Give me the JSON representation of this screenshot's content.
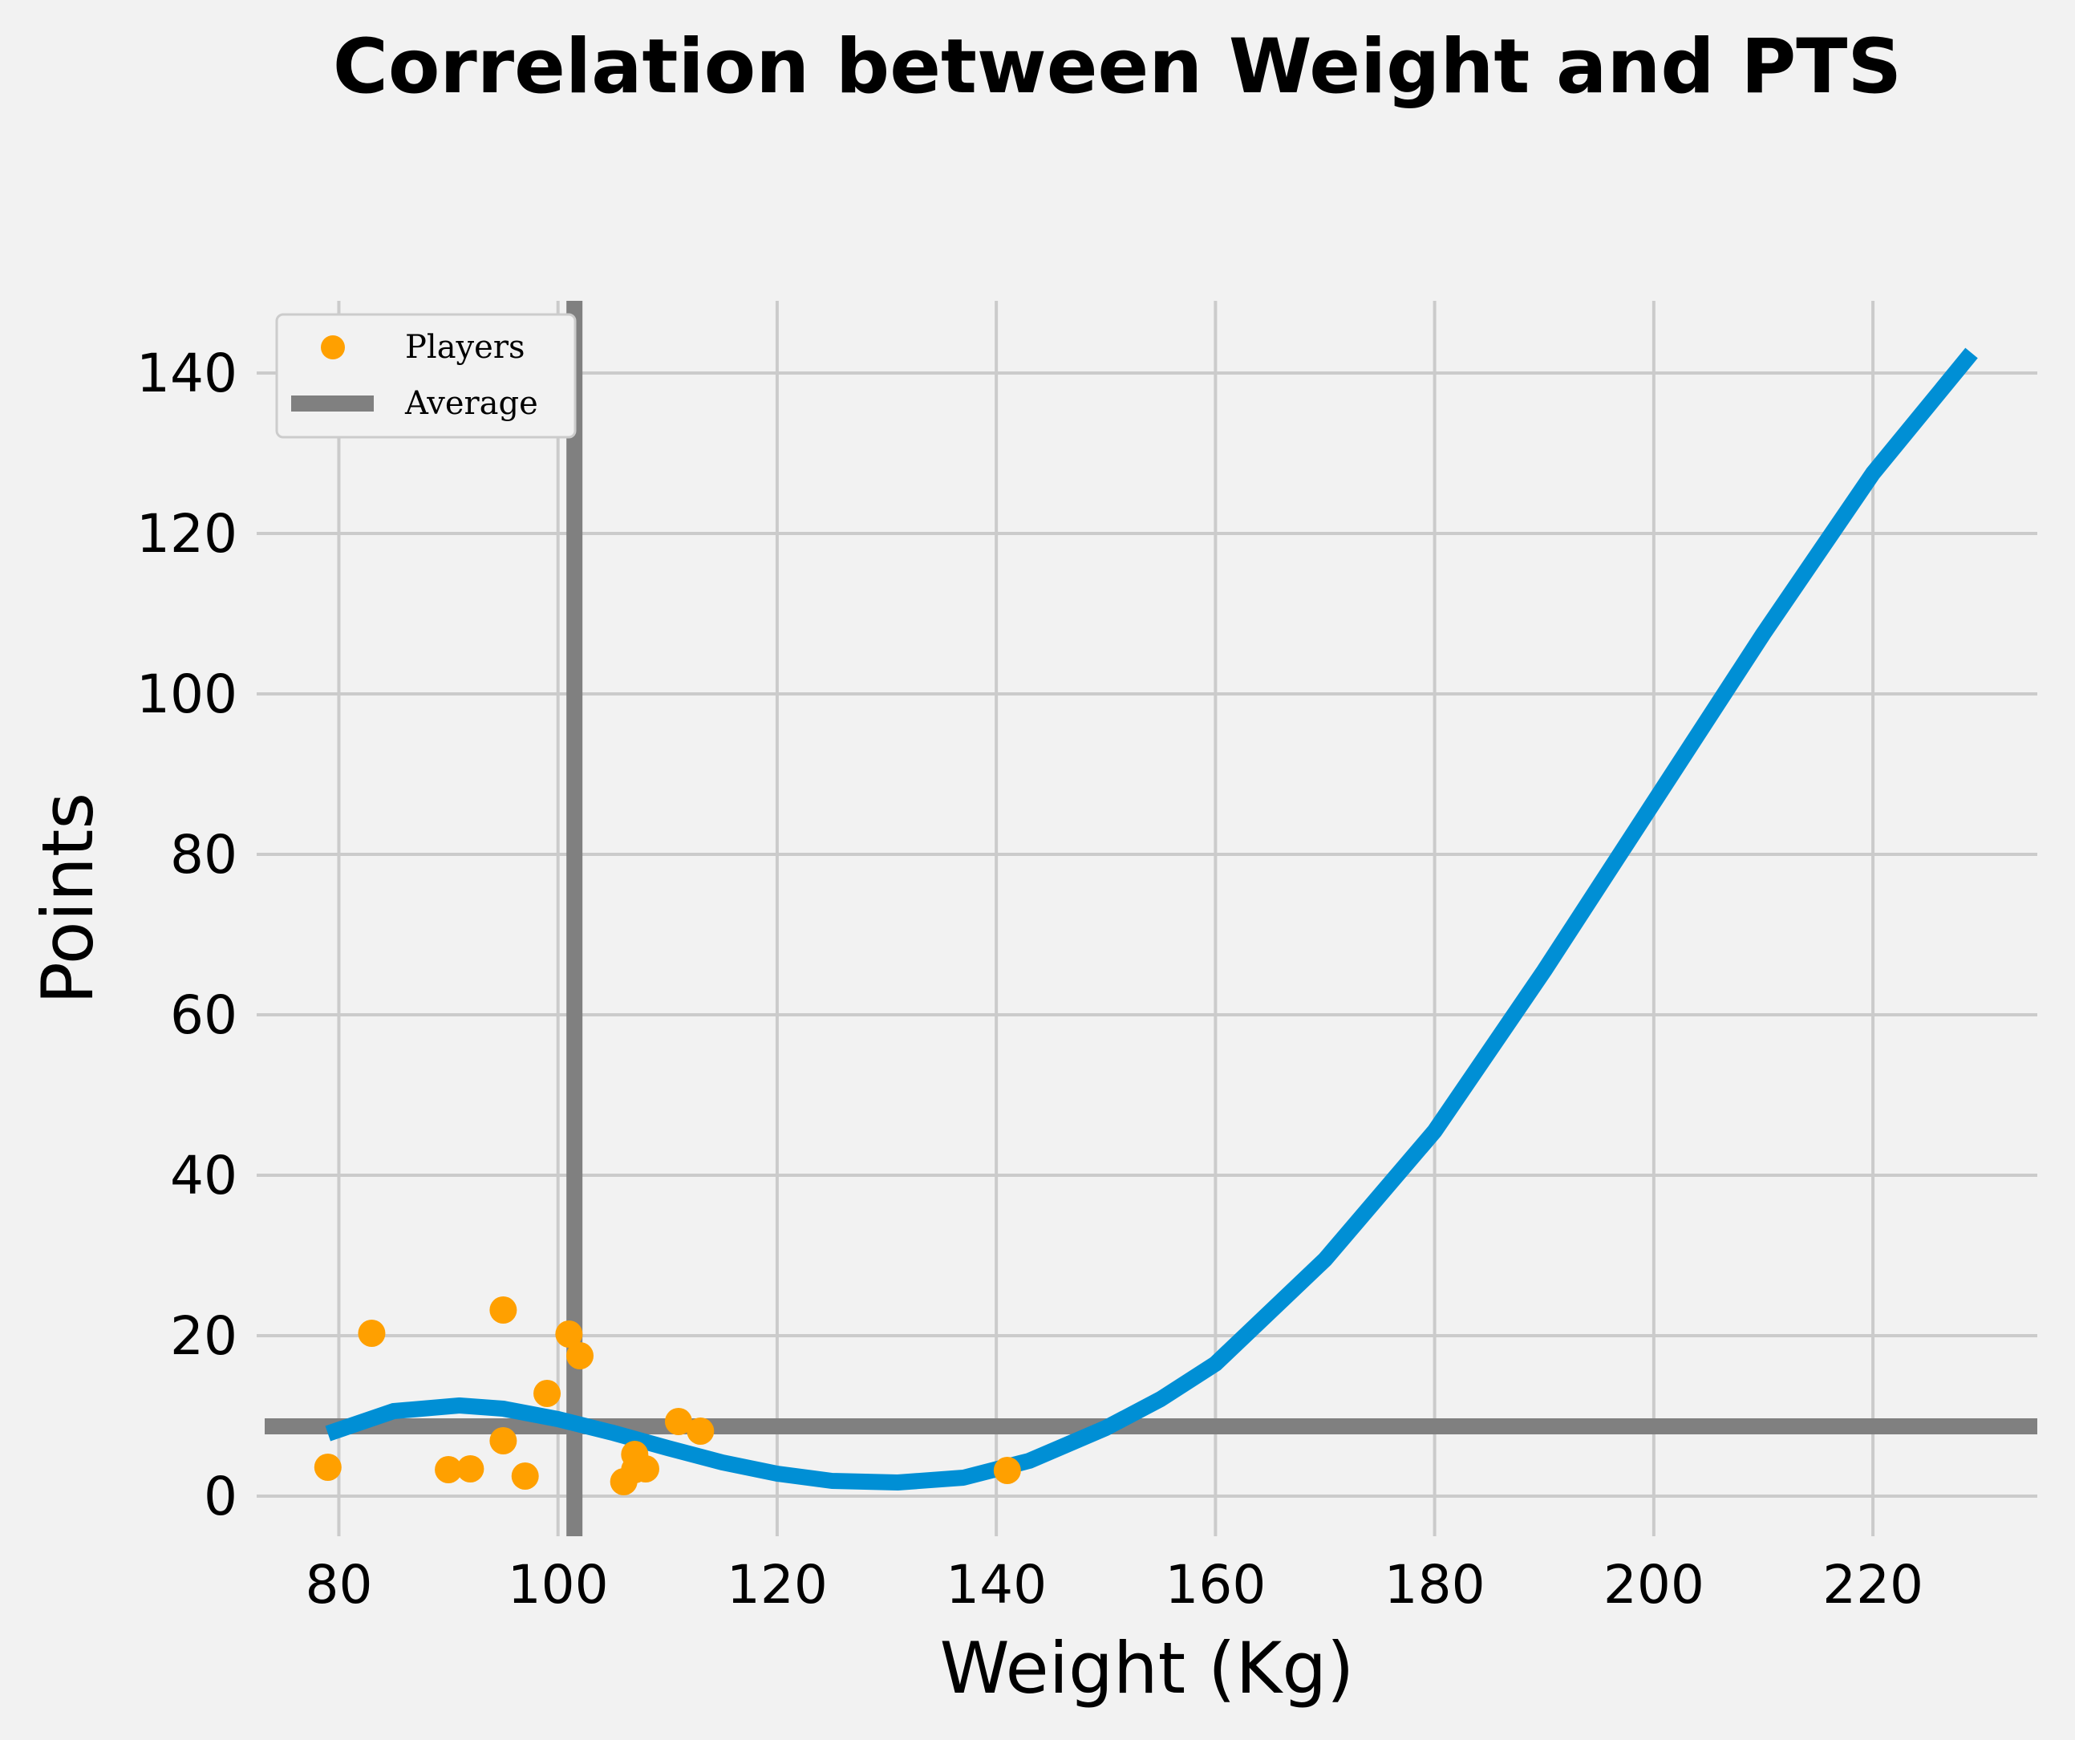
{
  "chart_data": {
    "type": "scatter",
    "title": "Correlation between Weight and PTS",
    "xlabel": "Weight (Kg)",
    "ylabel": "Points",
    "xlim": [
      72.5,
      235
    ],
    "ylim": [
      -5,
      149
    ],
    "xticks": [
      80,
      100,
      120,
      140,
      160,
      180,
      200,
      220
    ],
    "yticks": [
      0,
      20,
      40,
      60,
      80,
      100,
      120,
      140
    ],
    "grid": true,
    "legend_position": "top-left",
    "colors": {
      "background": "#f2f2f2",
      "players": "#ffa000",
      "average": "#808080",
      "fit": "#008fd5"
    },
    "series": [
      {
        "name": "Players",
        "kind": "scatter",
        "x": [
          79,
          83,
          90,
          92,
          95,
          95,
          97,
          99,
          101,
          102,
          106,
          107,
          107,
          108,
          111,
          113,
          141
        ],
        "y": [
          3.6,
          20.3,
          3.3,
          3.4,
          23.2,
          6.9,
          2.5,
          12.8,
          20.2,
          17.5,
          1.8,
          5.2,
          3.3,
          3.4,
          9.3,
          8.1,
          3.2
        ]
      },
      {
        "name": "Average",
        "kind": "reference-lines",
        "x_mean": 101.5,
        "y_mean": 8.7
      },
      {
        "name": "",
        "kind": "fit-line",
        "x": [
          79,
          85,
          91,
          95,
          100,
          105,
          110,
          115,
          120,
          125,
          131,
          137,
          143,
          150,
          155,
          160,
          170,
          180,
          190,
          200,
          210,
          220,
          229
        ],
        "y": [
          7.8,
          10.6,
          11.3,
          10.9,
          9.6,
          7.9,
          6.0,
          4.2,
          2.8,
          1.9,
          1.7,
          2.3,
          4.4,
          8.5,
          12.1,
          16.5,
          29.5,
          45.5,
          65.5,
          86.5,
          107.5,
          127.5,
          142.5
        ]
      }
    ],
    "legend": [
      "Players",
      "Average"
    ]
  }
}
